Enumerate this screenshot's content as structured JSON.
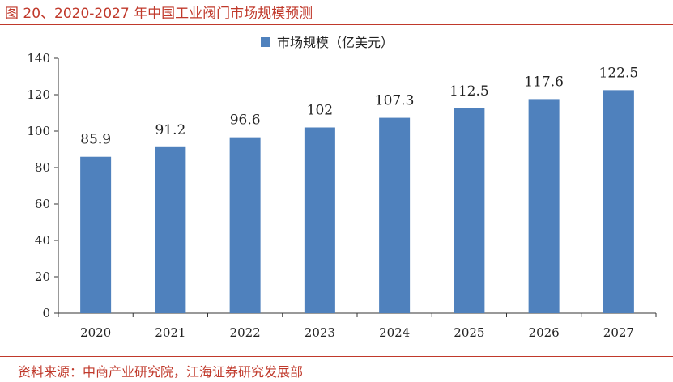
{
  "figure": {
    "title": "图 20、2020-2027 年中国工业阀门市场规模预测",
    "source_label": "资料来源：",
    "source_text": "中商产业研究院，江海证券研究发展部"
  },
  "colors": {
    "bar": "#4f81bd",
    "accent": "#c0392b"
  },
  "chart_data": {
    "type": "bar",
    "title": "",
    "xlabel": "",
    "ylabel": "",
    "categories": [
      "2020",
      "2021",
      "2022",
      "2023",
      "2024",
      "2025",
      "2026",
      "2027"
    ],
    "series": [
      {
        "name": "市场规模（亿美元）",
        "values": [
          85.9,
          91.2,
          96.6,
          102,
          107.3,
          112.5,
          117.6,
          122.5
        ],
        "labels": [
          "85.9",
          "91.2",
          "96.6",
          "102",
          "107.3",
          "112.5",
          "117.6",
          "122.5"
        ]
      }
    ],
    "ylim": [
      0,
      140
    ],
    "yticks": [
      0,
      20,
      40,
      60,
      80,
      100,
      120,
      140
    ],
    "legend_position": "top-center",
    "grid": false
  }
}
